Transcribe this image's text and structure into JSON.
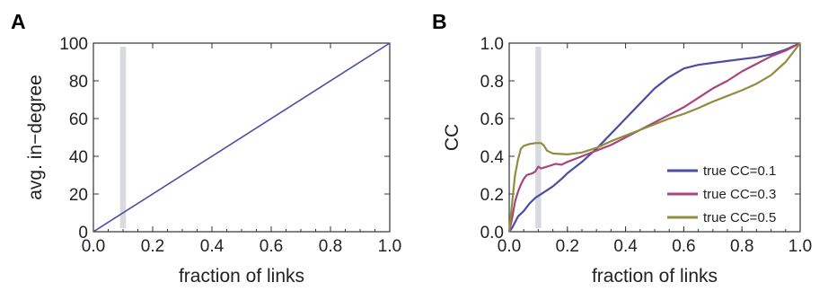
{
  "chart_data": [
    {
      "type": "line",
      "panel_label": "A",
      "xlabel": "fraction of links",
      "ylabel": "avg. in−degree",
      "xlim": [
        0,
        1
      ],
      "ylim": [
        0,
        100
      ],
      "xticks": [
        "0.0",
        "0.2",
        "0.4",
        "0.6",
        "0.8",
        "1.0"
      ],
      "yticks": [
        "0",
        "20",
        "40",
        "60",
        "80",
        "100"
      ],
      "grid": false,
      "highlight_band": {
        "x_range": [
          0.09,
          0.11
        ],
        "color": "#d8dade"
      },
      "series": [
        {
          "color": "#4b4ea0",
          "x": [
            0.0,
            1.0
          ],
          "y": [
            0,
            100
          ]
        }
      ]
    },
    {
      "type": "line",
      "panel_label": "B",
      "xlabel": "fraction of links",
      "ylabel": "CC",
      "xlim": [
        0,
        1
      ],
      "ylim": [
        0,
        1
      ],
      "xticks": [
        "0.0",
        "0.2",
        "0.4",
        "0.6",
        "0.8",
        "1.0"
      ],
      "yticks": [
        "0.0",
        "0.2",
        "0.4",
        "0.6",
        "0.8",
        "1.0"
      ],
      "grid": false,
      "legend_position": "bottom-right",
      "highlight_band": {
        "x_range": [
          0.09,
          0.11
        ],
        "color": "#d8dade"
      },
      "series": [
        {
          "name": "true CC=0.1",
          "color": "#4b4ea0",
          "x": [
            0.0,
            0.01,
            0.02,
            0.03,
            0.05,
            0.07,
            0.09,
            0.12,
            0.15,
            0.18,
            0.2,
            0.25,
            0.3,
            0.35,
            0.4,
            0.45,
            0.5,
            0.55,
            0.6,
            0.65,
            0.7,
            0.75,
            0.8,
            0.85,
            0.9,
            0.95,
            1.0
          ],
          "y": [
            0.0,
            0.02,
            0.05,
            0.08,
            0.11,
            0.15,
            0.18,
            0.21,
            0.24,
            0.28,
            0.31,
            0.37,
            0.44,
            0.52,
            0.6,
            0.68,
            0.76,
            0.82,
            0.865,
            0.885,
            0.895,
            0.905,
            0.915,
            0.925,
            0.94,
            0.965,
            1.0
          ]
        },
        {
          "name": "true CC=0.3",
          "color": "#a8457e",
          "x": [
            0.0,
            0.01,
            0.02,
            0.03,
            0.04,
            0.05,
            0.06,
            0.07,
            0.08,
            0.09,
            0.1,
            0.11,
            0.12,
            0.13,
            0.14,
            0.16,
            0.18,
            0.2,
            0.25,
            0.3,
            0.35,
            0.4,
            0.45,
            0.5,
            0.55,
            0.6,
            0.65,
            0.7,
            0.75,
            0.8,
            0.85,
            0.9,
            0.95,
            1.0
          ],
          "y": [
            0.0,
            0.07,
            0.16,
            0.21,
            0.25,
            0.28,
            0.3,
            0.305,
            0.31,
            0.32,
            0.345,
            0.335,
            0.34,
            0.345,
            0.35,
            0.36,
            0.355,
            0.37,
            0.4,
            0.43,
            0.46,
            0.5,
            0.54,
            0.58,
            0.62,
            0.66,
            0.71,
            0.76,
            0.8,
            0.85,
            0.89,
            0.93,
            0.96,
            1.0
          ]
        },
        {
          "name": "true CC=0.5",
          "color": "#928d3c",
          "x": [
            0.0,
            0.01,
            0.02,
            0.03,
            0.04,
            0.05,
            0.07,
            0.09,
            0.11,
            0.12,
            0.13,
            0.15,
            0.2,
            0.25,
            0.3,
            0.35,
            0.4,
            0.45,
            0.5,
            0.55,
            0.6,
            0.65,
            0.7,
            0.75,
            0.8,
            0.85,
            0.9,
            0.95,
            1.0
          ],
          "y": [
            0.0,
            0.15,
            0.3,
            0.38,
            0.44,
            0.455,
            0.465,
            0.47,
            0.47,
            0.455,
            0.43,
            0.415,
            0.41,
            0.42,
            0.445,
            0.48,
            0.51,
            0.54,
            0.57,
            0.6,
            0.625,
            0.655,
            0.69,
            0.72,
            0.75,
            0.785,
            0.83,
            0.9,
            1.0
          ]
        }
      ]
    }
  ]
}
